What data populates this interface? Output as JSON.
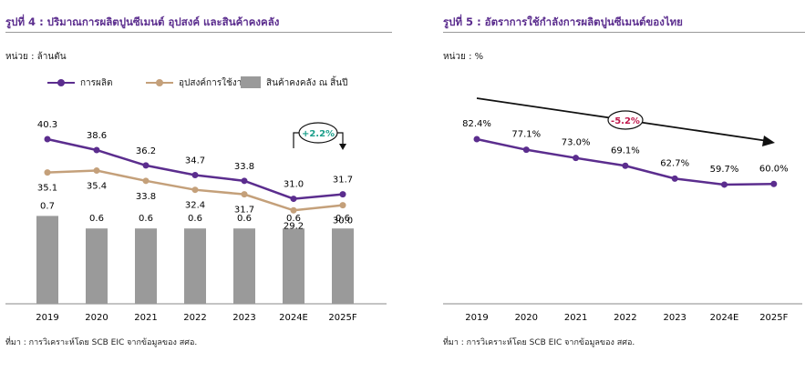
{
  "left": {
    "title": "รูปที่ 4 : ปริมาณการผลิตปูนซีเมนต์ อุปสงค์ และสินค้าคงคลัง",
    "unit": "หน่วย : ล้านตัน",
    "source": "ที่มา : การวิเคราะห์โดย SCB EIC จากข้อมูลของ สศอ.",
    "legend": {
      "production": "การผลิต",
      "demand": "อุปสงค์การใช้งาน",
      "inventory": "สินค้าคงคลัง ณ สิ้นปี"
    },
    "annotation": "+2.2%"
  },
  "right": {
    "title": "รูปที่ 5 : อัตราการใช้กำลังการผลิตปูนซีเมนต์ของไทย",
    "unit": "หน่วย : %",
    "source": "ที่มา : การวิเคราะห์โดย SCB EIC จากข้อมูลของ สศอ.",
    "annotation": "-5.2%"
  },
  "colors": {
    "production": "#5b2d8e",
    "demand": "#c4a07a",
    "inventory": "#9a9a9a",
    "positive": "#1a9e8a",
    "negative": "#c0174b"
  },
  "chart_data": [
    {
      "type": "bar",
      "categories": [
        "2019",
        "2020",
        "2021",
        "2022",
        "2023",
        "2024E",
        "2025F"
      ],
      "series": [
        {
          "name": "การผลิต",
          "type": "line",
          "values": [
            40.3,
            38.6,
            36.2,
            34.7,
            33.8,
            31.0,
            31.7
          ]
        },
        {
          "name": "อุปสงค์การใช้งาน",
          "type": "line",
          "values": [
            35.1,
            35.4,
            33.8,
            32.4,
            31.7,
            29.2,
            30.0
          ]
        },
        {
          "name": "สินค้าคงคลัง ณ สิ้นปี",
          "type": "bar",
          "values": [
            0.7,
            0.6,
            0.6,
            0.6,
            0.6,
            0.6,
            0.6
          ]
        }
      ],
      "annotations": [
        "+2.2%"
      ]
    },
    {
      "type": "line",
      "categories": [
        "2019",
        "2020",
        "2021",
        "2022",
        "2023",
        "2024E",
        "2025F"
      ],
      "series": [
        {
          "values": [
            82.4,
            77.1,
            73.0,
            69.1,
            62.7,
            59.7,
            60.0
          ]
        }
      ],
      "value_labels": [
        "82.4%",
        "77.1%",
        "73.0%",
        "69.1%",
        "62.7%",
        "59.7%",
        "60.0%"
      ],
      "annotations": [
        "-5.2%"
      ]
    }
  ]
}
